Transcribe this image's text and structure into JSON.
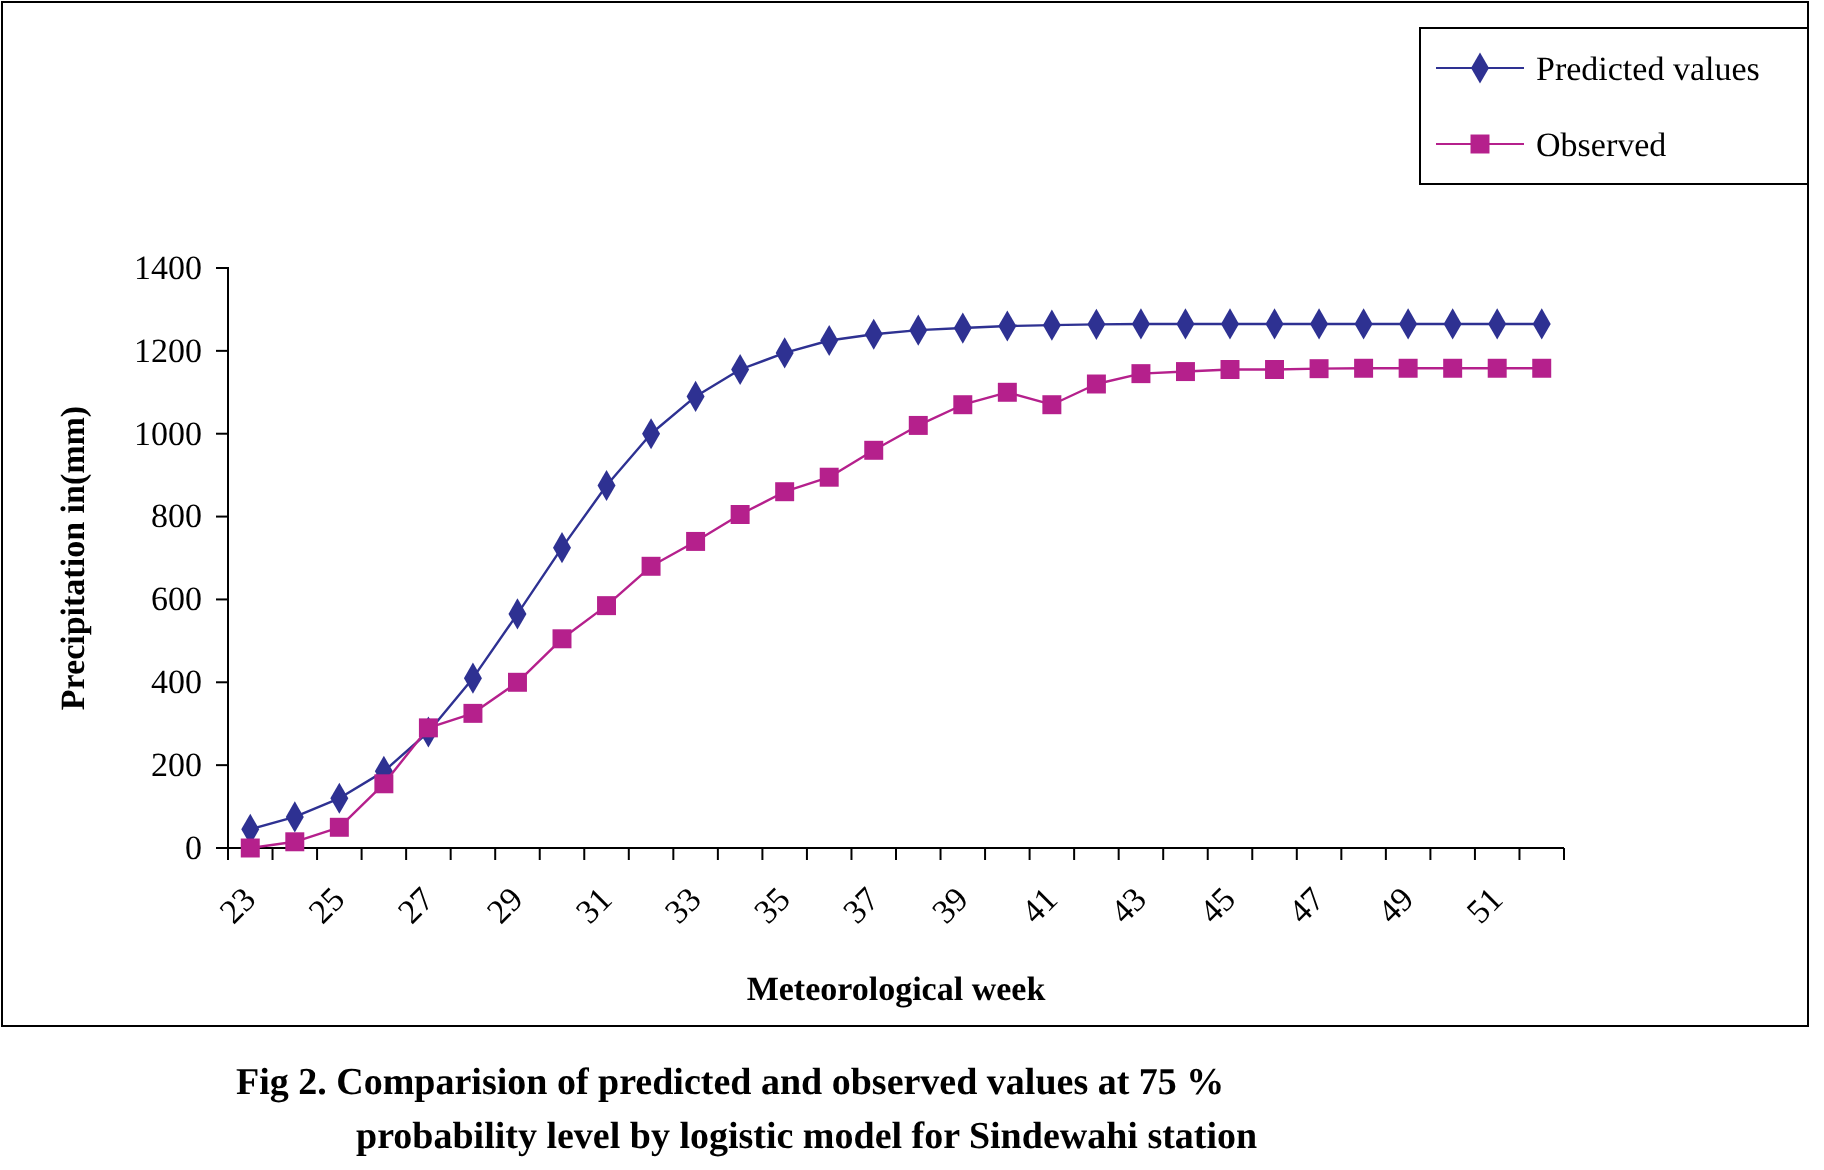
{
  "chart_data": {
    "type": "line",
    "title": "Fig 2. Comparision of predicted and observed values at 75 % probability level by logistic model for Sindewahi station",
    "xlabel": "Meteorological week",
    "ylabel": "Precipitation in(mm)",
    "categories": [
      "23",
      null,
      "25",
      null,
      "27",
      null,
      "29",
      null,
      "31",
      null,
      "33",
      null,
      "35",
      null,
      "37",
      null,
      "39",
      null,
      "41",
      null,
      "43",
      null,
      "45",
      null,
      "47",
      null,
      "49",
      null,
      "51",
      null
    ],
    "series": [
      {
        "name": "Predicted values",
        "color": "#2e3192",
        "marker": "diamond",
        "values": [
          45,
          75,
          120,
          185,
          280,
          410,
          565,
          725,
          875,
          1000,
          1090,
          1155,
          1195,
          1225,
          1240,
          1250,
          1255,
          1260,
          1262,
          1264,
          1265,
          1265,
          1265,
          1265,
          1265,
          1265,
          1265,
          1265,
          1265,
          1265
        ]
      },
      {
        "name": "Observed",
        "color": "#b5208c",
        "marker": "square",
        "values": [
          0,
          15,
          50,
          155,
          290,
          325,
          400,
          505,
          585,
          680,
          740,
          805,
          860,
          895,
          960,
          1020,
          1070,
          1100,
          1070,
          1120,
          1145,
          1150,
          1155,
          1155,
          1157,
          1158,
          1158,
          1158,
          1158,
          1158
        ]
      }
    ],
    "ylim": [
      0,
      1400
    ],
    "yticks": [
      0,
      200,
      400,
      600,
      800,
      1000,
      1200,
      1400
    ],
    "legend": "top right",
    "grid": false
  }
}
